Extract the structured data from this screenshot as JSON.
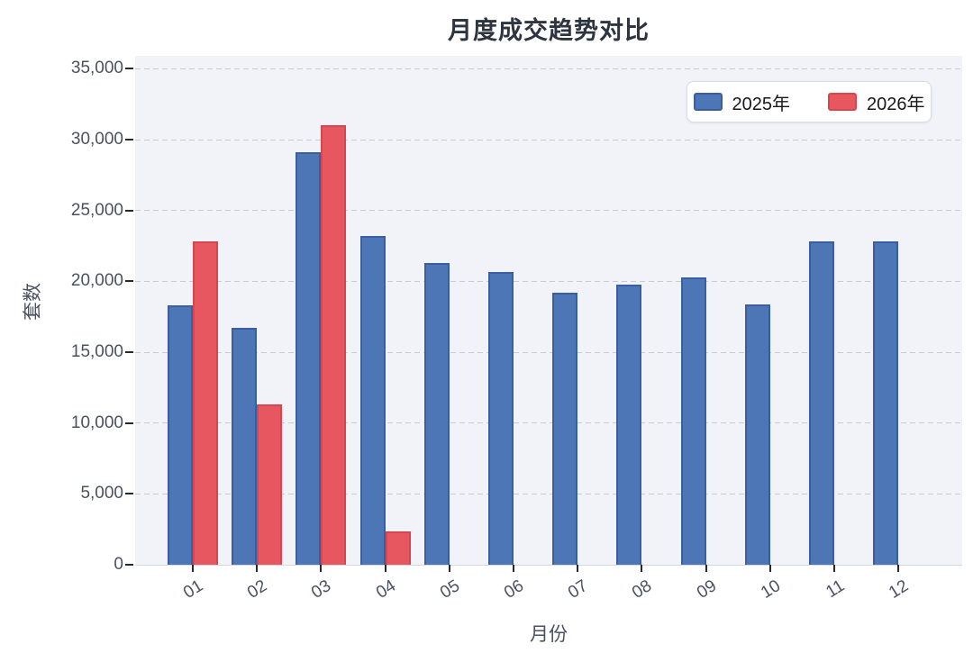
{
  "title": "月度成交趋势对比",
  "chart_data": {
    "type": "bar",
    "title": "月度成交趋势对比",
    "xlabel": "月份",
    "ylabel": "套数",
    "categories": [
      "01",
      "02",
      "03",
      "04",
      "05",
      "06",
      "07",
      "08",
      "09",
      "10",
      "11",
      "12"
    ],
    "series": [
      {
        "name": "2025年",
        "color": "#4d76b7",
        "edge_color": "#3a5e9f",
        "values": [
          18300,
          16700,
          29100,
          23200,
          21300,
          20650,
          19200,
          19750,
          20300,
          18400,
          22800,
          22800
        ]
      },
      {
        "name": "2026年",
        "color": "#e6575f",
        "edge_color": "#d8454f",
        "values": [
          22800,
          11300,
          31050,
          2350,
          null,
          null,
          null,
          null,
          null,
          null,
          null,
          null
        ]
      }
    ],
    "ylim": [
      0,
      35000
    ],
    "ytick_step": 5000,
    "ytick_labels": [
      "0",
      "5,000",
      "10,000",
      "15,000",
      "20,000",
      "25,000",
      "30,000",
      "35,000"
    ],
    "grid": "horizontal dashed",
    "legend_position": "top-right"
  },
  "colors": {
    "background": "#ffffff",
    "plot_background": "#f1f3f8",
    "gridline": "#c9cbd4",
    "tick_mark": "#26282e",
    "tick_label": "#4a5161",
    "axis_title": "#4a5161",
    "chart_title": "#2e3440",
    "legend_border": "#d9dbe2",
    "legend_background": "#ffffff",
    "legend_text": "#17181c",
    "series_2025_fill": "#4d76b7",
    "series_2025_edge": "#3a5e9f",
    "series_2026_fill": "#e6575f",
    "series_2026_edge": "#d8454f"
  }
}
